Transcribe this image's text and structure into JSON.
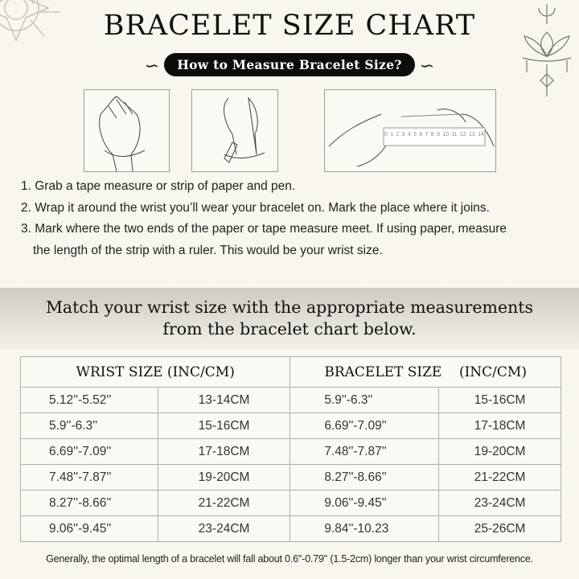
{
  "header": {
    "title": "BRACELET SIZE CHART",
    "subtitle": "How to Measure Bracelet Size?"
  },
  "illustrations": {
    "ruler_numbers": [
      "0",
      "1",
      "2",
      "3",
      "4",
      "5",
      "6",
      "7",
      "8",
      "9",
      "10",
      "11",
      "12",
      "13",
      "14"
    ]
  },
  "steps": [
    "1. Grab a tape measure or strip of paper and pen.",
    "2. Wrap it around the wrist you’ll wear your bracelet on. Mark the place where it joins.",
    "3. Mark where the two ends of the paper or tape measure meet. If using paper, measure",
    "the length of the strip with a ruler. This would be your wrist size."
  ],
  "band": {
    "line1": "Match your wrist size with the appropriate measurements",
    "line2": "from the bracelet chart below."
  },
  "table": {
    "headers": [
      "WRIST SIZE (INC/CM)",
      "BRACELET SIZE    (INC/CM)"
    ],
    "rows": [
      [
        "5.12''-5.52''",
        "13-14CM",
        "5.9''-6.3''",
        "15-16CM"
      ],
      [
        "5.9''-6.3''",
        "15-16CM",
        "6.69''-7.09''",
        "17-18CM"
      ],
      [
        "6.69''-7.09''",
        "17-18CM",
        "7.48''-7.87''",
        "19-20CM"
      ],
      [
        "7.48''-7.87''",
        "19-20CM",
        "8.27''-8.66''",
        "21-22CM"
      ],
      [
        "8.27''-8.66''",
        "21-22CM",
        "9.06''-9.45''",
        "23-24CM"
      ],
      [
        "9.06''-9.45''",
        "23-24CM",
        "9.84''-10.23",
        "25-26CM"
      ]
    ]
  },
  "footer": "Generally, the optimal length of a bracelet will fall about 0.6''-0.79'' (1.5-2cm) longer than your wrist circumference."
}
